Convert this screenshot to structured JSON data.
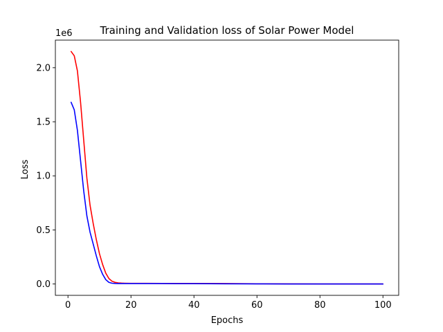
{
  "chart_data": {
    "type": "line",
    "title": "Training and Validation loss of Solar Power Model",
    "xlabel": "Epochs",
    "ylabel": "Loss",
    "y_offset_label": "1e6",
    "xlim": [
      -4,
      105
    ],
    "ylim": [
      -0.105,
      2.255
    ],
    "x_ticks": [
      0,
      20,
      40,
      60,
      80,
      100
    ],
    "x_tick_labels": [
      "0",
      "20",
      "40",
      "60",
      "80",
      "100"
    ],
    "y_ticks": [
      0.0,
      0.5,
      1.0,
      1.5,
      2.0
    ],
    "y_tick_labels": [
      "0.0",
      "0.5",
      "1.0",
      "1.5",
      "2.0"
    ],
    "grid": false,
    "series": [
      {
        "color": "#ff0000",
        "x": [
          1,
          2,
          3,
          4,
          5,
          6,
          7,
          8,
          9,
          10,
          11,
          12,
          13,
          14,
          15,
          16,
          17,
          18,
          20,
          25,
          30,
          40,
          50,
          60,
          70,
          80,
          90,
          100
        ],
        "y": [
          2.15,
          2.11,
          1.97,
          1.68,
          1.33,
          0.98,
          0.73,
          0.56,
          0.41,
          0.28,
          0.18,
          0.1,
          0.05,
          0.025,
          0.015,
          0.01,
          0.008,
          0.007,
          0.006,
          0.006,
          0.005,
          0.005,
          0.004,
          0.002,
          0.001,
          0.0,
          0.0,
          0.0
        ]
      },
      {
        "color": "#0000ff",
        "x": [
          1,
          2,
          3,
          4,
          5,
          6,
          7,
          8,
          9,
          10,
          11,
          12,
          13,
          14,
          15,
          16,
          17,
          18,
          20,
          25,
          30,
          40,
          50,
          60,
          70,
          80,
          90,
          100
        ],
        "y": [
          1.68,
          1.61,
          1.42,
          1.14,
          0.86,
          0.63,
          0.48,
          0.37,
          0.26,
          0.16,
          0.09,
          0.04,
          0.015,
          0.007,
          0.005,
          0.004,
          0.004,
          0.004,
          0.004,
          0.004,
          0.004,
          0.003,
          0.002,
          0.001,
          0.0,
          0.0,
          0.0,
          0.0
        ]
      }
    ]
  }
}
